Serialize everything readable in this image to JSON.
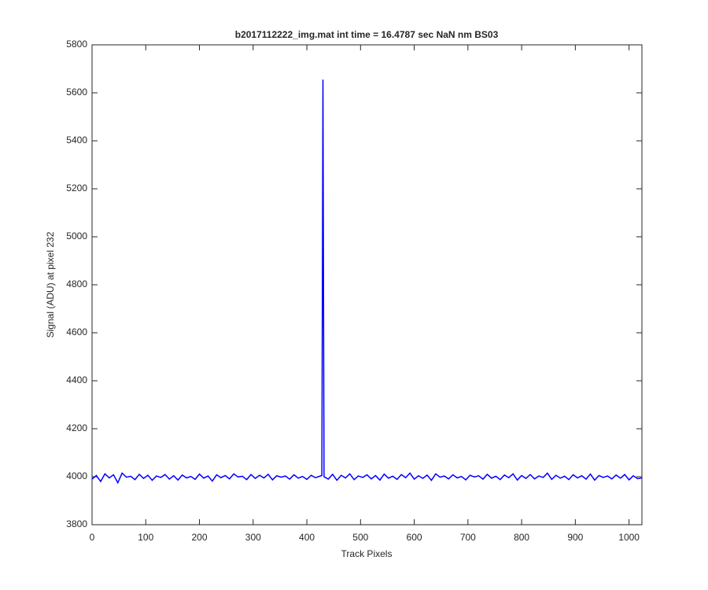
{
  "chart_data": {
    "type": "line",
    "title": "b2017112222_img.mat int time = 16.4787 sec  NaN nm BS03",
    "xlabel": "Track Pixels",
    "ylabel": "Signal (ADU) at pixel 232",
    "color": "#0000ff",
    "x": [
      0,
      8,
      16,
      24,
      32,
      40,
      48,
      56,
      64,
      72,
      80,
      88,
      96,
      104,
      112,
      120,
      128,
      136,
      144,
      152,
      160,
      168,
      176,
      184,
      192,
      200,
      208,
      216,
      224,
      232,
      240,
      248,
      256,
      264,
      272,
      280,
      288,
      296,
      304,
      312,
      320,
      328,
      336,
      344,
      352,
      360,
      368,
      376,
      384,
      392,
      400,
      408,
      416,
      424,
      428,
      430,
      432,
      440,
      448,
      456,
      464,
      472,
      480,
      488,
      496,
      504,
      512,
      520,
      528,
      536,
      544,
      552,
      560,
      568,
      576,
      584,
      592,
      600,
      608,
      616,
      624,
      632,
      640,
      648,
      656,
      664,
      672,
      680,
      688,
      696,
      704,
      712,
      720,
      728,
      736,
      744,
      752,
      760,
      768,
      776,
      784,
      792,
      800,
      808,
      816,
      824,
      832,
      840,
      848,
      856,
      864,
      872,
      880,
      888,
      896,
      904,
      912,
      920,
      928,
      936,
      944,
      952,
      960,
      968,
      976,
      984,
      992,
      1000,
      1008,
      1016,
      1024
    ],
    "values": [
      3990,
      4005,
      3980,
      4012,
      3995,
      4008,
      3975,
      4015,
      3998,
      4002,
      3988,
      4010,
      3993,
      4006,
      3985,
      4003,
      3997,
      4009,
      3990,
      4004,
      3986,
      4007,
      3995,
      4001,
      3989,
      4011,
      3994,
      4003,
      3982,
      4008,
      3996,
      4005,
      3991,
      4012,
      3999,
      4002,
      3988,
      4009,
      3993,
      4006,
      3995,
      4010,
      3987,
      4004,
      3998,
      4003,
      3990,
      4008,
      3994,
      4001,
      3989,
      4006,
      3996,
      4002,
      4005,
      5655,
      4000,
      3990,
      4010,
      3985,
      4006,
      3995,
      4012,
      3988,
      4003,
      3997,
      4008,
      3991,
      4005,
      3986,
      4011,
      3994,
      4002,
      3989,
      4009,
      3996,
      4015,
      3990,
      4004,
      3993,
      4007,
      3985,
      4012,
      3998,
      4003,
      3991,
      4008,
      3995,
      4001,
      3987,
      4006,
      3999,
      4004,
      3990,
      4010,
      3994,
      4002,
      3988,
      4007,
      3996,
      4012,
      3986,
      4005,
      3993,
      4009,
      3991,
      4003,
      3997,
      4015,
      3989,
      4006,
      3994,
      4002,
      3988,
      4008,
      3995,
      4004,
      3990,
      4011,
      3986,
      4005,
      3997,
      4003,
      3991,
      4007,
      3994,
      4009,
      3987,
      4004,
      3992,
      3995
    ],
    "xlim": [
      0,
      1024
    ],
    "ylim": [
      3800,
      5800
    ],
    "xticks": [
      0,
      100,
      200,
      300,
      400,
      500,
      600,
      700,
      800,
      900,
      1000
    ],
    "yticks": [
      3800,
      4000,
      4200,
      4400,
      4600,
      4800,
      5000,
      5200,
      5400,
      5600,
      5800
    ]
  }
}
